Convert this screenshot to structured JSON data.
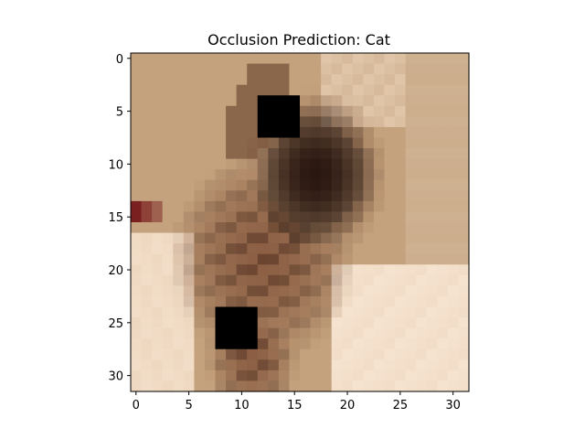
{
  "chart_data": {
    "type": "heatmap",
    "title": "Occlusion Prediction: Cat",
    "xlabel": "",
    "ylabel": "",
    "xlim": [
      -0.5,
      31.5
    ],
    "ylim": [
      31.5,
      -0.5
    ],
    "xticks": [
      0,
      5,
      10,
      15,
      20,
      25,
      30
    ],
    "yticks": [
      0,
      5,
      10,
      15,
      20,
      25,
      30
    ],
    "xtick_labels": [
      "0",
      "5",
      "10",
      "15",
      "20",
      "25",
      "30"
    ],
    "ytick_labels": [
      "0",
      "5",
      "10",
      "15",
      "20",
      "25",
      "30"
    ],
    "grid": false,
    "image_size": [
      32,
      32
    ],
    "occlusion_patches": [
      {
        "x": [
          12,
          15
        ],
        "y": [
          4,
          7
        ],
        "color": "#000000"
      },
      {
        "x": [
          8,
          11
        ],
        "y": [
          24,
          27
        ],
        "color": "#000000"
      }
    ],
    "colors": {
      "background": "#c4a27d",
      "wall_light": "#d2b79a",
      "fur_dark": "#2a1710",
      "fur_mid": "#6b4530",
      "fur_brown": "#8c5f44",
      "cream": "#efd8c0",
      "cream_light": "#f5e3cf",
      "red_accent": "#7a2020"
    }
  }
}
